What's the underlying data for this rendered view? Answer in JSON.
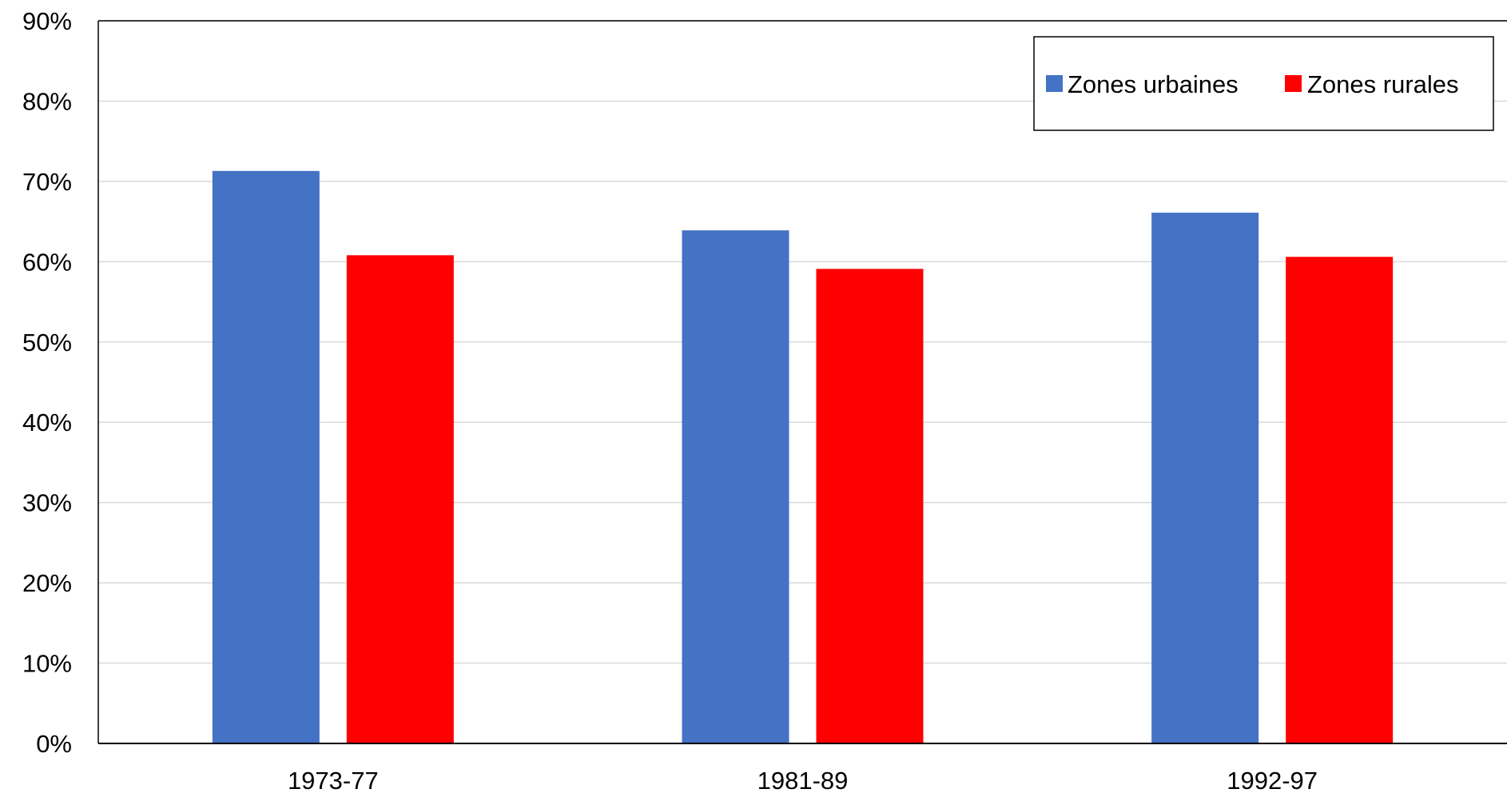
{
  "chart_data": {
    "type": "bar",
    "categories": [
      "1973-77",
      "1981-89",
      "1992-97"
    ],
    "series": [
      {
        "name": "Zones urbaines",
        "values": [
          71.3,
          63.9,
          66.1
        ],
        "color": "#4472C4"
      },
      {
        "name": "Zones rurales",
        "values": [
          60.8,
          59.1,
          60.6
        ],
        "color": "#FF0000"
      }
    ],
    "ylim": [
      0,
      90
    ],
    "yticks": [
      "0%",
      "10%",
      "20%",
      "30%",
      "40%",
      "50%",
      "60%",
      "70%",
      "80%",
      "90%"
    ],
    "y_unit": "%",
    "grid": true,
    "legend_position": "top-right",
    "xlabel": "",
    "ylabel": "",
    "title": ""
  }
}
